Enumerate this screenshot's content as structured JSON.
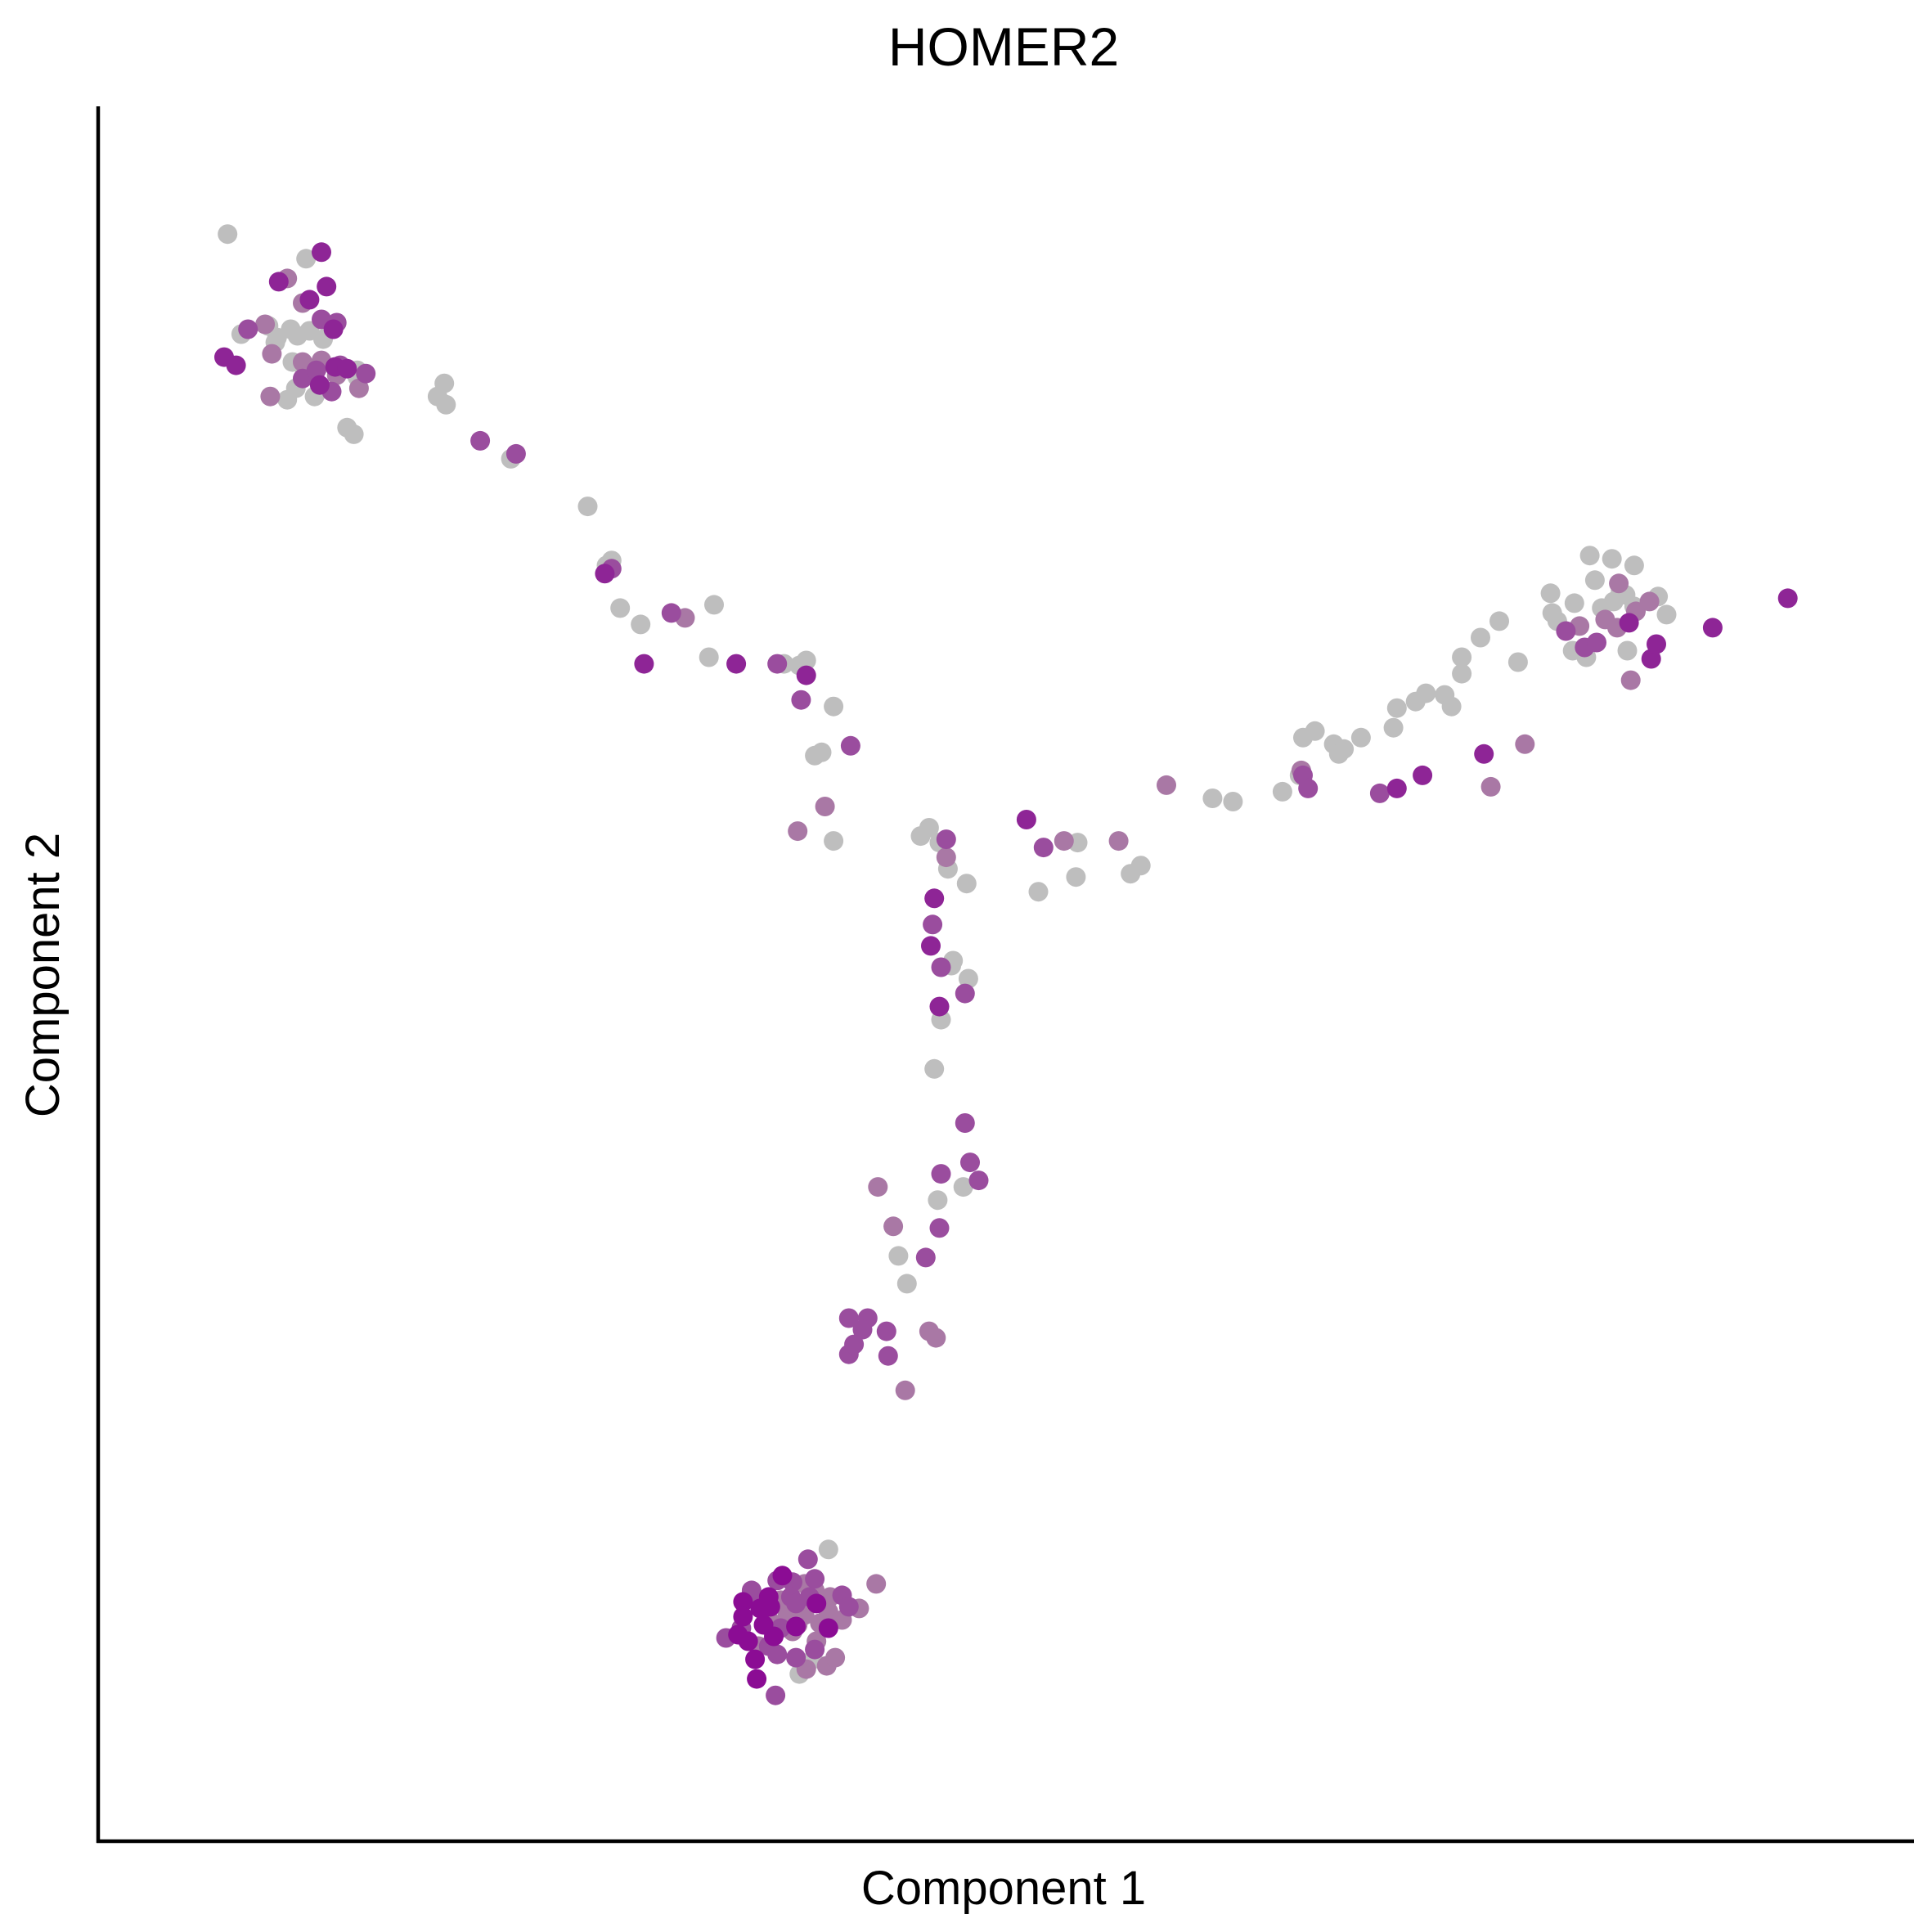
{
  "chart_data": {
    "type": "scatter",
    "title": "HOMER2",
    "xlabel": "Component 1",
    "ylabel": "Component 2",
    "xlim": [
      0,
      100
    ],
    "ylim": [
      0,
      100
    ],
    "grid": false,
    "legend": "none",
    "x_ticks_shown": false,
    "y_ticks_shown": false,
    "colors": {
      "none": "#BEBEBE",
      "low": "#A978A5",
      "mid": "#9A4D9E",
      "high": "#8E2596",
      "max": "#8B0C94"
    },
    "series": [
      {
        "level": "none",
        "points": [
          [
            4.8,
            95.2
          ],
          [
            9.4,
            93.7
          ],
          [
            5.6,
            89.1
          ],
          [
            7.2,
            89.6
          ],
          [
            7.7,
            88.9
          ],
          [
            8.5,
            89.4
          ],
          [
            8.9,
            89.0
          ],
          [
            9.6,
            89.3
          ],
          [
            10.4,
            88.8
          ],
          [
            7.6,
            88.6
          ],
          [
            8.6,
            87.4
          ],
          [
            9.2,
            87.2
          ],
          [
            10.2,
            87.2
          ],
          [
            12.4,
            86.9
          ],
          [
            8.8,
            85.8
          ],
          [
            10.2,
            85.7
          ],
          [
            12.4,
            86.5
          ],
          [
            8.3,
            85.1
          ],
          [
            9.9,
            85.3
          ],
          [
            11.8,
            83.4
          ],
          [
            12.2,
            83.0
          ],
          [
            17.5,
            86.1
          ],
          [
            17.1,
            85.3
          ],
          [
            17.6,
            84.8
          ],
          [
            21.4,
            81.5
          ],
          [
            25.9,
            78.6
          ],
          [
            27.3,
            75.3
          ],
          [
            27.0,
            75.0
          ],
          [
            27.8,
            72.4
          ],
          [
            29.0,
            71.4
          ],
          [
            33.3,
            72.6
          ],
          [
            33.0,
            69.4
          ],
          [
            37.4,
            69.0
          ],
          [
            38.7,
            69.2
          ],
          [
            38.3,
            68.9
          ],
          [
            40.3,
            66.4
          ],
          [
            39.2,
            63.4
          ],
          [
            39.6,
            63.6
          ],
          [
            40.3,
            58.2
          ],
          [
            45.4,
            58.5
          ],
          [
            45.9,
            59.0
          ],
          [
            46.5,
            58.1
          ],
          [
            47.0,
            56.5
          ],
          [
            48.1,
            55.6
          ],
          [
            47.2,
            50.6
          ],
          [
            47.3,
            50.9
          ],
          [
            48.2,
            49.8
          ],
          [
            46.6,
            47.3
          ],
          [
            46.2,
            44.3
          ],
          [
            47.9,
            37.1
          ],
          [
            46.4,
            36.3
          ],
          [
            44.1,
            32.9
          ],
          [
            44.6,
            31.2
          ],
          [
            40.0,
            15.0
          ],
          [
            38.3,
            7.4
          ],
          [
            39.1,
            8.3
          ],
          [
            52.3,
            55.1
          ],
          [
            54.6,
            58.1
          ],
          [
            54.5,
            56.0
          ],
          [
            57.7,
            56.2
          ],
          [
            58.3,
            56.7
          ],
          [
            62.5,
            60.8
          ],
          [
            63.7,
            60.6
          ],
          [
            66.6,
            61.2
          ],
          [
            67.6,
            62.2
          ],
          [
            67.8,
            64.5
          ],
          [
            68.5,
            64.9
          ],
          [
            69.6,
            64.1
          ],
          [
            69.9,
            63.5
          ],
          [
            70.2,
            63.8
          ],
          [
            71.2,
            64.5
          ],
          [
            73.1,
            65.1
          ],
          [
            73.3,
            66.3
          ],
          [
            74.4,
            66.7
          ],
          [
            75.0,
            67.2
          ],
          [
            76.1,
            67.1
          ],
          [
            76.5,
            66.4
          ],
          [
            77.1,
            69.4
          ],
          [
            77.1,
            68.4
          ],
          [
            78.2,
            70.6
          ],
          [
            79.3,
            71.6
          ],
          [
            80.4,
            69.1
          ],
          [
            82.3,
            73.3
          ],
          [
            82.4,
            72.1
          ],
          [
            82.7,
            71.6
          ],
          [
            83.7,
            72.7
          ],
          [
            84.6,
            75.6
          ],
          [
            84.9,
            74.1
          ],
          [
            85.3,
            72.4
          ],
          [
            86.0,
            72.8
          ],
          [
            86.7,
            73.2
          ],
          [
            87.2,
            72.5
          ],
          [
            83.6,
            69.8
          ],
          [
            84.4,
            69.4
          ],
          [
            86.8,
            69.8
          ],
          [
            85.9,
            75.4
          ],
          [
            87.2,
            75.0
          ],
          [
            88.6,
            73.1
          ],
          [
            89.1,
            72.0
          ],
          [
            86.4,
            73.4
          ]
        ]
      },
      {
        "level": "low",
        "points": [
          [
            8.3,
            92.5
          ],
          [
            9.2,
            91.0
          ],
          [
            7.0,
            89.7
          ],
          [
            7.4,
            87.9
          ],
          [
            9.2,
            87.4
          ],
          [
            10.3,
            87.5
          ],
          [
            7.3,
            85.3
          ],
          [
            12.5,
            85.8
          ],
          [
            11.2,
            86.6
          ],
          [
            31.6,
            71.8
          ],
          [
            38.2,
            58.8
          ],
          [
            39.8,
            60.3
          ],
          [
            46.9,
            57.2
          ],
          [
            53.8,
            58.2
          ],
          [
            57.0,
            58.2
          ],
          [
            59.8,
            61.6
          ],
          [
            67.7,
            62.5
          ],
          [
            78.8,
            61.5
          ],
          [
            80.8,
            64.1
          ],
          [
            84.0,
            71.3
          ],
          [
            87.3,
            72.2
          ],
          [
            85.5,
            71.7
          ],
          [
            86.2,
            71.2
          ],
          [
            86.3,
            73.9
          ],
          [
            88.1,
            72.8
          ],
          [
            87.0,
            68.0
          ],
          [
            42.9,
            37.1
          ],
          [
            43.8,
            34.7
          ],
          [
            45.9,
            28.3
          ],
          [
            46.3,
            27.9
          ],
          [
            44.5,
            24.7
          ],
          [
            40.1,
            12.1
          ],
          [
            39.5,
            10.5
          ],
          [
            38.6,
            11.0
          ],
          [
            39.2,
            12.5
          ],
          [
            40.8,
            10.7
          ],
          [
            39.9,
            7.9
          ],
          [
            38.7,
            7.7
          ],
          [
            40.4,
            8.4
          ],
          [
            38.2,
            10.4
          ],
          [
            40.0,
            11.2
          ],
          [
            37.2,
            11.9
          ],
          [
            38.6,
            12.9
          ],
          [
            35.9,
            9.1
          ],
          [
            36.6,
            10.6
          ],
          [
            37.9,
            10.0
          ],
          [
            37.6,
            11.1
          ],
          [
            39.3,
            9.4
          ],
          [
            41.8,
            11.4
          ],
          [
            42.8,
            12.9
          ]
        ]
      },
      {
        "level": "mid",
        "points": [
          [
            6.0,
            89.4
          ],
          [
            10.3,
            90.0
          ],
          [
            11.2,
            89.8
          ],
          [
            11.4,
            87.2
          ],
          [
            12.9,
            86.7
          ],
          [
            9.2,
            86.4
          ],
          [
            10.0,
            86.9
          ],
          [
            10.9,
            85.6
          ],
          [
            19.6,
            82.6
          ],
          [
            21.7,
            81.8
          ],
          [
            27.3,
            74.8
          ],
          [
            30.8,
            72.1
          ],
          [
            37.0,
            69.0
          ],
          [
            38.4,
            66.8
          ],
          [
            41.3,
            64.0
          ],
          [
            46.9,
            58.3
          ],
          [
            52.6,
            57.8
          ],
          [
            67.8,
            62.2
          ],
          [
            68.1,
            61.4
          ],
          [
            72.3,
            61.1
          ],
          [
            83.2,
            71.0
          ],
          [
            84.3,
            70.0
          ],
          [
            85.0,
            70.3
          ],
          [
            46.1,
            53.1
          ],
          [
            46.6,
            50.5
          ],
          [
            48.0,
            48.9
          ],
          [
            48.0,
            41.0
          ],
          [
            48.3,
            38.6
          ],
          [
            46.6,
            37.9
          ],
          [
            48.8,
            37.5
          ],
          [
            45.7,
            32.8
          ],
          [
            46.5,
            34.6
          ],
          [
            41.2,
            29.1
          ],
          [
            42.3,
            29.1
          ],
          [
            42.0,
            28.4
          ],
          [
            43.4,
            28.3
          ],
          [
            43.5,
            26.8
          ],
          [
            41.2,
            26.9
          ],
          [
            41.5,
            27.5
          ],
          [
            38.8,
            14.4
          ],
          [
            39.2,
            13.2
          ],
          [
            37.9,
            13.0
          ],
          [
            37.0,
            13.1
          ],
          [
            37.8,
            12.1
          ],
          [
            38.1,
            11.7
          ],
          [
            36.1,
            11.7
          ],
          [
            35.5,
            12.3
          ],
          [
            36.5,
            9.1
          ],
          [
            37.2,
            10.2
          ],
          [
            38.1,
            8.4
          ],
          [
            39.2,
            8.9
          ],
          [
            37.0,
            8.6
          ],
          [
            40.8,
            12.2
          ],
          [
            41.2,
            11.5
          ],
          [
            35.5,
            12.5
          ],
          [
            38.9,
            12.1
          ],
          [
            34.9,
            10.2
          ],
          [
            36.9,
            6.1
          ],
          [
            34.0,
            9.6
          ]
        ]
      },
      {
        "level": "high",
        "points": [
          [
            10.3,
            94.1
          ],
          [
            7.8,
            92.3
          ],
          [
            9.6,
            91.2
          ],
          [
            10.6,
            92.0
          ],
          [
            11.0,
            89.4
          ],
          [
            4.6,
            87.7
          ],
          [
            5.3,
            87.2
          ],
          [
            11.1,
            87.1
          ],
          [
            10.2,
            86.0
          ],
          [
            11.8,
            87.0
          ],
          [
            26.9,
            74.5
          ],
          [
            29.2,
            69.0
          ],
          [
            34.6,
            69.0
          ],
          [
            38.7,
            68.3
          ],
          [
            51.6,
            59.5
          ],
          [
            73.3,
            61.4
          ],
          [
            74.8,
            62.2
          ],
          [
            78.4,
            63.5
          ],
          [
            91.8,
            71.2
          ],
          [
            96.2,
            73.0
          ],
          [
            88.2,
            69.3
          ],
          [
            88.5,
            70.2
          ],
          [
            86.9,
            71.5
          ],
          [
            46.2,
            54.7
          ],
          [
            46.0,
            51.8
          ],
          [
            46.5,
            48.1
          ]
        ]
      },
      {
        "level": "max",
        "points": [
          [
            36.6,
            11.5
          ],
          [
            35.3,
            9.4
          ],
          [
            36.8,
            9.7
          ],
          [
            38.1,
            10.3
          ],
          [
            35.0,
            11.8
          ],
          [
            35.7,
            8.3
          ],
          [
            39.3,
            11.7
          ],
          [
            36.0,
            11.4
          ],
          [
            36.2,
            10.4
          ],
          [
            35.8,
            7.1
          ],
          [
            35.0,
            10.9
          ],
          [
            34.7,
            9.8
          ],
          [
            40.0,
            10.2
          ],
          [
            37.3,
            13.4
          ],
          [
            36.5,
            12.1
          ]
        ]
      }
    ]
  }
}
